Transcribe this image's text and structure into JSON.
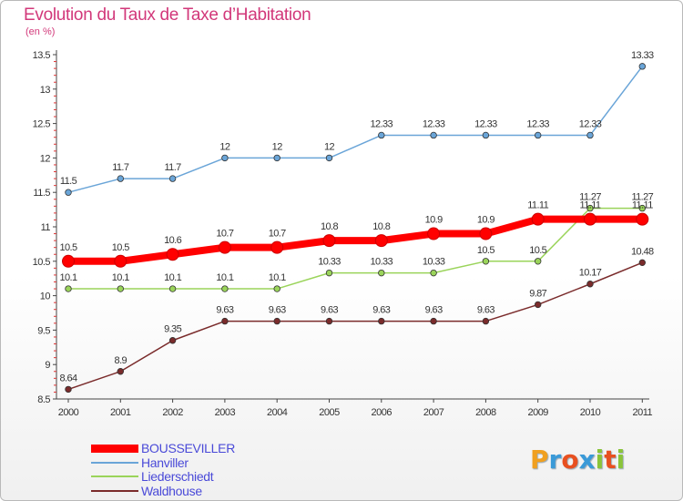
{
  "chart_data": {
    "type": "line",
    "title": "Evolution du Taux de Taxe d’Habitation",
    "subtitle": "(en %)",
    "x": [
      "2000",
      "2001",
      "2002",
      "2003",
      "2004",
      "2005",
      "2006",
      "2007",
      "2008",
      "2009",
      "2010",
      "2011"
    ],
    "ylim": [
      8.5,
      13.5
    ],
    "yticks": [
      "8.5",
      "9",
      "9.5",
      "10",
      "10.5",
      "11",
      "11.5",
      "12",
      "12.5",
      "13",
      "13.5"
    ],
    "grid": false,
    "legend_position": "bottom-left",
    "series": [
      {
        "name": "BOUSSEVILLER",
        "color": "#ff0000",
        "values": [
          10.5,
          10.5,
          10.6,
          10.7,
          10.7,
          10.8,
          10.8,
          10.9,
          10.9,
          11.11,
          11.11,
          11.11
        ],
        "labels": [
          "10.5",
          "10.5",
          "10.6",
          "10.7",
          "10.7",
          "10.8",
          "10.8",
          "10.9",
          "10.9",
          "11.11",
          "11.11",
          "11.11"
        ]
      },
      {
        "name": "Hanviller",
        "color": "#6aa5d8",
        "values": [
          11.5,
          11.7,
          11.7,
          12,
          12,
          12,
          12.33,
          12.33,
          12.33,
          12.33,
          12.33,
          13.33
        ],
        "labels": [
          "11.5",
          "11.7",
          "11.7",
          "12",
          "12",
          "12",
          "12.33",
          "12.33",
          "12.33",
          "12.33",
          "12.33",
          "13.33"
        ]
      },
      {
        "name": "Liederschiedt",
        "color": "#9ad45a",
        "values": [
          10.1,
          10.1,
          10.1,
          10.1,
          10.1,
          10.33,
          10.33,
          10.33,
          10.5,
          10.5,
          11.27,
          11.27
        ],
        "labels": [
          "10.1",
          "10.1",
          "10.1",
          "10.1",
          "10.1",
          "10.33",
          "10.33",
          "10.33",
          "10.5",
          "10.5",
          "11.27",
          "11.27"
        ]
      },
      {
        "name": "Waldhouse",
        "color": "#7a2b2b",
        "values": [
          8.64,
          8.9,
          9.35,
          9.63,
          9.63,
          9.63,
          9.63,
          9.63,
          9.63,
          9.87,
          10.17,
          10.48
        ],
        "labels": [
          "8.64",
          "8.9",
          "9.35",
          "9.63",
          "9.63",
          "9.63",
          "9.63",
          "9.63",
          "9.63",
          "9.87",
          "10.17",
          "10.48"
        ]
      }
    ]
  },
  "logo": {
    "letters": [
      "P",
      "r",
      "o",
      "x",
      "i",
      "t",
      "i"
    ],
    "colors": [
      "#f0a020",
      "#3a9ad8",
      "#e85020",
      "#3a9ad8",
      "#8ac43a",
      "#e85020",
      "#8ac43a"
    ]
  }
}
